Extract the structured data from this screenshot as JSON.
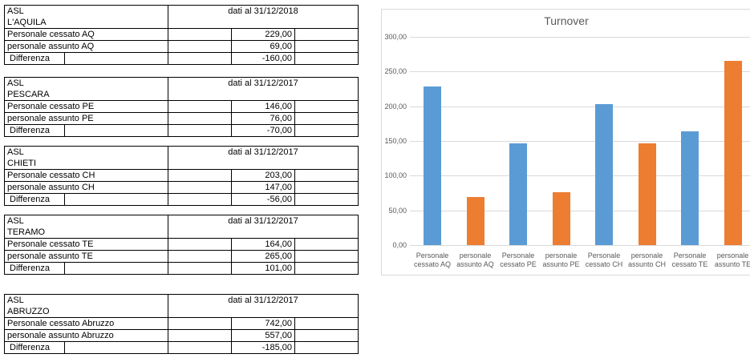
{
  "tables": [
    {
      "region_label": "ASL",
      "region": "L'AQUILA",
      "date_header": "dati al 31/12/2018",
      "rows": [
        {
          "label": "Personale cessato AQ",
          "value": "229,00"
        },
        {
          "label": "personale assunto AQ",
          "value": "69,00"
        },
        {
          "label": "Differenza",
          "value": "-160,00"
        }
      ]
    },
    {
      "region_label": "ASL",
      "region": "PESCARA",
      "date_header": "dati al 31/12/2017",
      "rows": [
        {
          "label": "Personale cessato PE",
          "value": "146,00"
        },
        {
          "label": "personale assunto PE",
          "value": "76,00"
        },
        {
          "label": "Differenza",
          "value": "-70,00"
        }
      ]
    },
    {
      "region_label": "ASL",
      "region": "CHIETI",
      "date_header": "dati al 31/12/2017",
      "rows": [
        {
          "label": "Personale cessato CH",
          "value": "203,00"
        },
        {
          "label": "personale assunto CH",
          "value": "147,00"
        },
        {
          "label": "Differenza",
          "value": "-56,00"
        }
      ]
    },
    {
      "region_label": "ASL",
      "region": "TERAMO",
      "date_header": "dati al 31/12/2017",
      "rows": [
        {
          "label": "Personale cessato TE",
          "value": "164,00"
        },
        {
          "label": "personale assunto TE",
          "value": "265,00"
        },
        {
          "label": "Differenza",
          "value": "101,00"
        }
      ]
    },
    {
      "region_label": "ASL",
      "region": "ABRUZZO",
      "date_header": "dati al 31/12/2017",
      "rows": [
        {
          "label": "Personale cessato Abruzzo",
          "value": "742,00"
        },
        {
          "label": "personale assunto Abruzzo",
          "value": "557,00"
        },
        {
          "label": "Differenza",
          "value": "-185,00"
        }
      ]
    }
  ],
  "chart_data": {
    "type": "bar",
    "title": "Turnover",
    "categories": [
      "Personale cessato AQ",
      "personale assunto AQ",
      "Personale cessato PE",
      "personale assunto PE",
      "Personale cessato CH",
      "personale assunto CH",
      "Personale cessato TE",
      "personale assunto TE"
    ],
    "values": [
      229,
      69,
      146,
      76,
      203,
      147,
      164,
      265
    ],
    "bar_colors": [
      "#5B9BD5",
      "#ED7D31",
      "#5B9BD5",
      "#ED7D31",
      "#5B9BD5",
      "#ED7D31",
      "#5B9BD5",
      "#ED7D31"
    ],
    "y_ticks": [
      "0,00",
      "50,00",
      "100,00",
      "150,00",
      "200,00",
      "250,00",
      "300,00"
    ],
    "tick_step": 50,
    "ylim": [
      0,
      300
    ],
    "xlabel": "",
    "ylabel": "",
    "grid": true,
    "legend": "none",
    "colors": {
      "series_cessato": "#5B9BD5",
      "series_assunto": "#ED7D31",
      "gridline": "#D9D9D9",
      "axis_text": "#595959",
      "chart_border": "#D9D9D9"
    }
  }
}
